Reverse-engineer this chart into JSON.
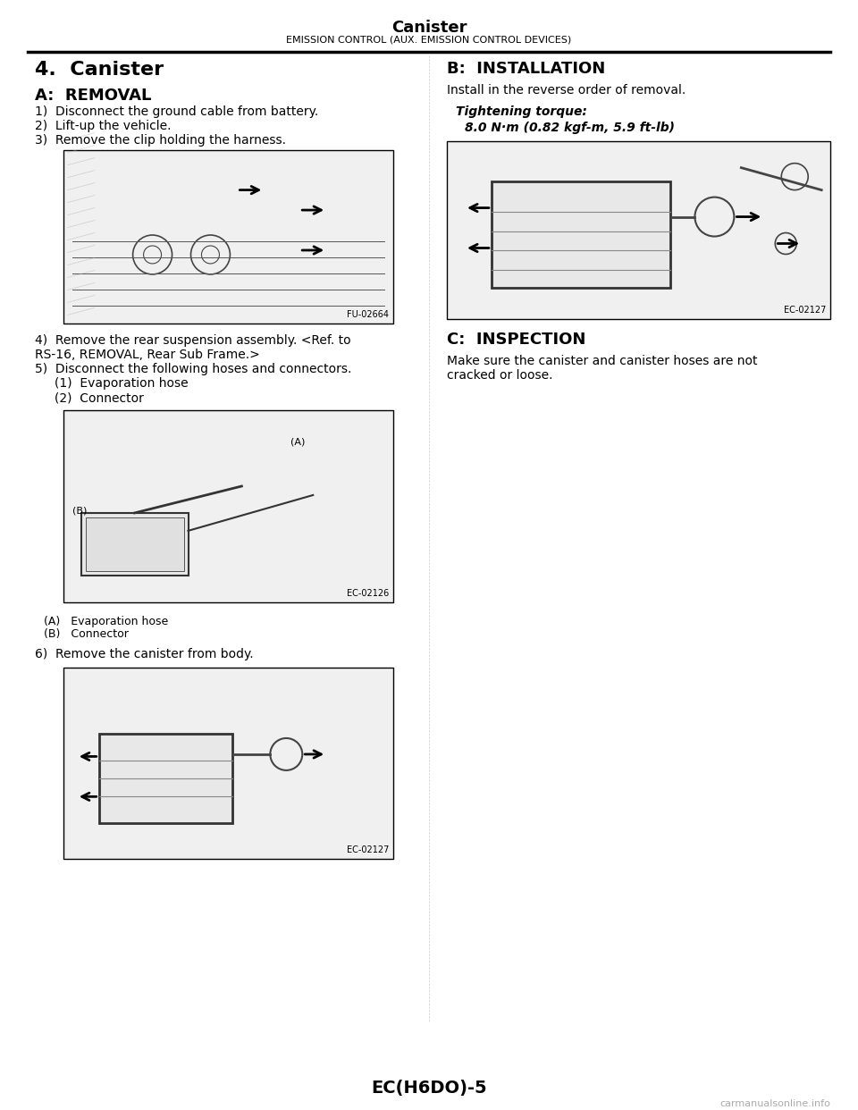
{
  "page_title": "Canister",
  "page_subtitle": "EMISSION CONTROL (AUX. EMISSION CONTROL DEVICES)",
  "page_footer": "EC(H6DO)-5",
  "watermark": "carmanualsonline.info",
  "bg_color": "#ffffff",
  "left_column": {
    "section_title": "4.  Canister",
    "subsection_a": "A:  REMOVAL",
    "steps_1_3": [
      "1)  Disconnect the ground cable from battery.",
      "2)  Lift-up the vehicle.",
      "3)  Remove the clip holding the harness."
    ],
    "image1_label": "FU-02664",
    "steps_4_5": [
      "4)  Remove the rear suspension assembly. <Ref. to",
      "RS-16, REMOVAL, Rear Sub Frame.>",
      "5)  Disconnect the following hoses and connectors.",
      "     (1)  Evaporation hose",
      "     (2)  Connector"
    ],
    "image2_label": "EC-02126",
    "legend_A": "(A)   Evaporation hose",
    "legend_B": "(B)   Connector",
    "step6": "6)  Remove the canister from body.",
    "image3_label": "EC-02127"
  },
  "right_column": {
    "subsection_b": "B:  INSTALLATION",
    "b_text": "Install in the reverse order of removal.",
    "tightening_label": "Tightening torque:",
    "tightening_value": "8.0 N·m (0.82 kgf-m, 5.9 ft-lb)",
    "image4_label": "EC-02127",
    "subsection_c": "C:  INSPECTION",
    "c_text": "Make sure the canister and canister hoses are not\ncracked or loose."
  }
}
